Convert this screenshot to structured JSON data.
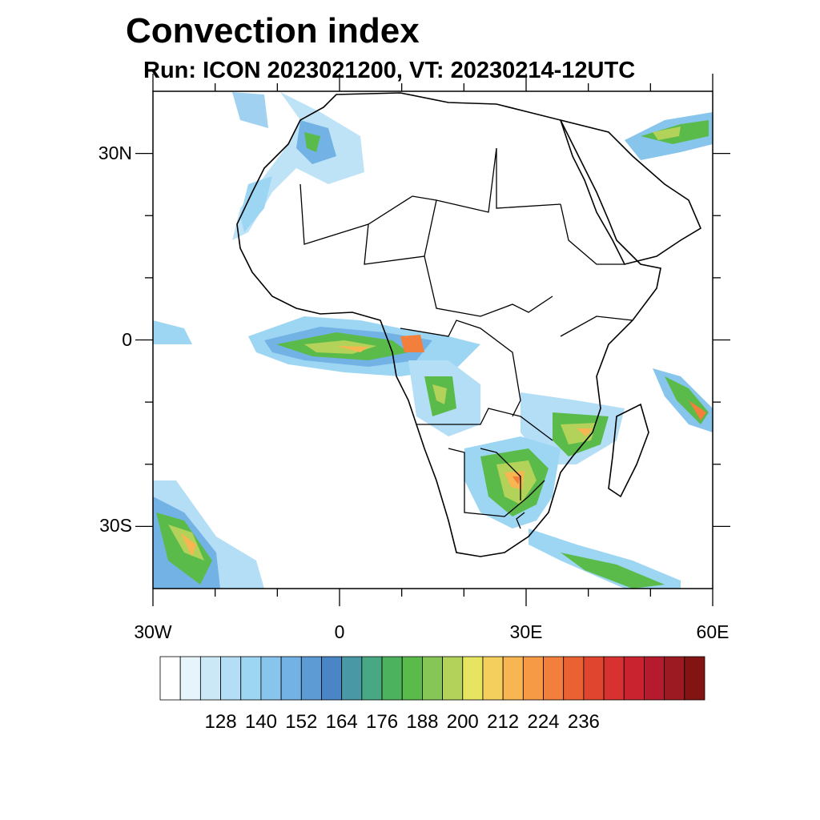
{
  "title": "Convection index",
  "subtitle": "Run: ICON 2023021200,  VT: 20230214-12UTC",
  "map": {
    "lon_range": [
      -30,
      60
    ],
    "lat_range": [
      -40,
      40
    ],
    "lat_ticks": [
      {
        "value": 30,
        "label": "30N"
      },
      {
        "value": 0,
        "label": "0"
      },
      {
        "value": -30,
        "label": "30S"
      }
    ],
    "lon_ticks": [
      {
        "value": -30,
        "label": "30W"
      },
      {
        "value": 0,
        "label": "0"
      },
      {
        "value": 30,
        "label": "30E"
      },
      {
        "value": 60,
        "label": "60E"
      }
    ],
    "minor_lon_ticks": [
      -20,
      -10,
      10,
      20,
      40,
      50
    ],
    "minor_lat_ticks": [
      -20,
      -10,
      10,
      20
    ]
  },
  "colorbar": {
    "colors": [
      "#ffffff",
      "#e6f4fb",
      "#cbe8f7",
      "#b3def5",
      "#9dd6f3",
      "#88c5ec",
      "#73b2e4",
      "#5c9bd4",
      "#4a86c6",
      "#4898a5",
      "#47a883",
      "#4cb25e",
      "#5bbb4a",
      "#86c656",
      "#b2d25a",
      "#e7e461",
      "#f5cf5d",
      "#f8b652",
      "#f79a46",
      "#f27f3c",
      "#ea6233",
      "#e0452f",
      "#d7322f",
      "#c92330",
      "#b51b2c",
      "#9c1a22",
      "#821414"
    ],
    "labels": [
      "128",
      "140",
      "152",
      "164",
      "176",
      "188",
      "200",
      "212",
      "224",
      "236"
    ]
  }
}
